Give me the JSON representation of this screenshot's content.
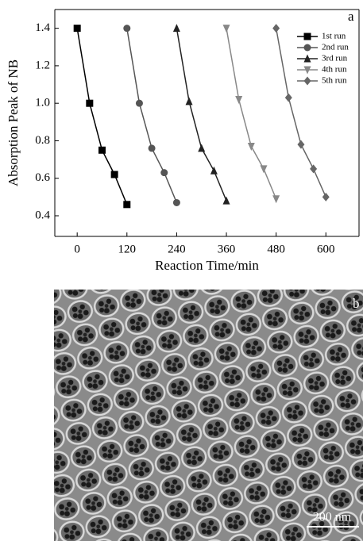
{
  "chart_data": {
    "type": "line",
    "panel_label": "a",
    "x_label": "Reaction Time/min",
    "y_label": "Absorption Peak of NB",
    "xlim": [
      -54,
      680
    ],
    "ylim": [
      0.29,
      1.5
    ],
    "xticks": [
      0,
      120,
      240,
      360,
      480,
      600
    ],
    "yticks": [
      0.4,
      0.6,
      0.8,
      {
        "value": 1,
        "label": "1.0"
      },
      1.2,
      1.4
    ],
    "legend_position": "upper right",
    "series": [
      {
        "name": "1st run",
        "color": "#000000",
        "marker": "square",
        "x": [
          0,
          30,
          60,
          90,
          120
        ],
        "values": [
          1.4,
          1.0,
          0.75,
          0.62,
          0.46
        ]
      },
      {
        "name": "2nd run",
        "color": "#555555",
        "marker": "circle",
        "x": [
          120,
          150,
          180,
          210,
          240
        ],
        "values": [
          1.4,
          1.0,
          0.76,
          0.63,
          0.47
        ]
      },
      {
        "name": "3rd run",
        "color": "#222222",
        "marker": "triangle-up",
        "x": [
          240,
          270,
          300,
          330,
          360
        ],
        "values": [
          1.4,
          1.01,
          0.76,
          0.64,
          0.48
        ]
      },
      {
        "name": "4th run",
        "color": "#888888",
        "marker": "triangle-down",
        "x": [
          360,
          390,
          420,
          450,
          480
        ],
        "values": [
          1.4,
          1.02,
          0.77,
          0.65,
          0.49
        ]
      },
      {
        "name": "5th run",
        "color": "#666666",
        "marker": "diamond",
        "x": [
          480,
          510,
          540,
          570,
          600
        ],
        "values": [
          1.4,
          1.03,
          0.78,
          0.65,
          0.5
        ]
      }
    ]
  },
  "image_panel": {
    "label": "b",
    "scale_bar": "200 nm"
  }
}
